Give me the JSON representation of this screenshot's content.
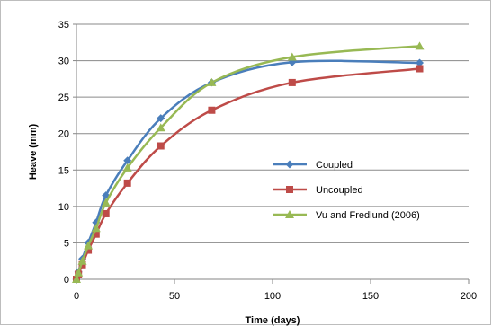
{
  "chart_data": {
    "type": "line",
    "title": "",
    "xlabel": "Time (days)",
    "ylabel": "Heave (mm)",
    "xlim": [
      0,
      200
    ],
    "ylim": [
      0,
      35
    ],
    "xticks": [
      0,
      50,
      100,
      150,
      200
    ],
    "yticks": [
      0,
      5,
      10,
      15,
      20,
      25,
      30,
      35
    ],
    "grid": "horizontal",
    "legend_position": "center-right",
    "series": [
      {
        "name": "Coupled",
        "color": "#4a7ebb",
        "marker": "diamond",
        "x": [
          0,
          1,
          3,
          6,
          10,
          15,
          26,
          43,
          69,
          110,
          175
        ],
        "y": [
          0,
          1.0,
          2.8,
          5.0,
          7.8,
          11.5,
          16.3,
          22.1,
          27.0,
          29.8,
          29.7
        ]
      },
      {
        "name": "Uncoupled",
        "color": "#be4b48",
        "marker": "square",
        "x": [
          0,
          1,
          3,
          6,
          10,
          15,
          26,
          43,
          69,
          110,
          175
        ],
        "y": [
          0,
          0.7,
          2.0,
          4.0,
          6.2,
          9.0,
          13.2,
          18.3,
          23.2,
          27.0,
          28.9
        ]
      },
      {
        "name": "Vu and Fredlund (2006)",
        "color": "#98b954",
        "marker": "triangle",
        "x": [
          0,
          1,
          3,
          6,
          10,
          15,
          26,
          43,
          69,
          110,
          175
        ],
        "y": [
          0,
          0.9,
          2.5,
          4.6,
          7.0,
          10.5,
          15.3,
          20.8,
          27.0,
          30.5,
          32.0
        ]
      }
    ]
  }
}
